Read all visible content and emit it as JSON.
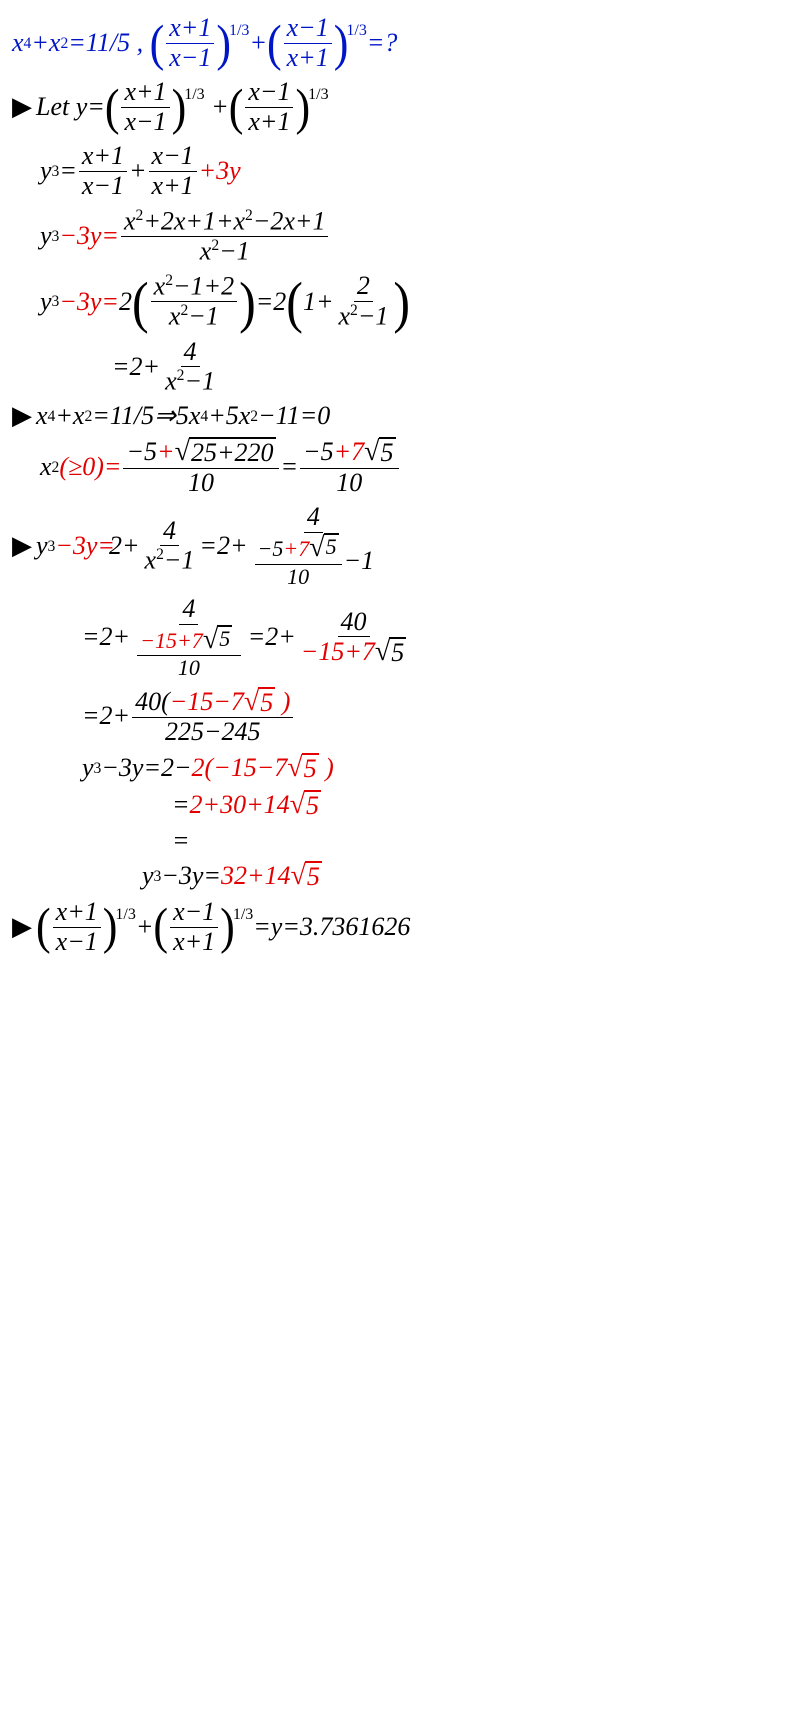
{
  "l1a": "x",
  "l1b": "4",
  "l1c": "+",
  "l1d": "x",
  "l1e": "2",
  "l1f": "=11/5 ,",
  "f_num_xp1": "x+1",
  "f_den_xm1": "x−1",
  "f_num_xm1": "x−1",
  "f_den_xp1": "x+1",
  "exp13": "1/3",
  "eq_q": "=?",
  "tri": "▶",
  "let": "Let y=",
  "plus": "+",
  "y3": "y",
  "cube": "3",
  "eq": "=",
  "p3y": "+3y",
  "m3y": "−3y=",
  "num1": "x",
  "sq": "2",
  "numpoly": "+2x+1+x",
  "mpoly": "−2x+1",
  "dpoly": "x",
  "dm1": "−1",
  "two": "2",
  "nxm12": "x",
  "p2": "−1+2",
  "lpre": "=2",
  "lpar1": "1+",
  "ltwo": "2",
  "eq2p": "=2+",
  "four": "4",
  "l7": " x",
  "rarr": "=11/5⇒5x",
  "p5": "+5x",
  "m11": "−11=0",
  "l8a": "x",
  "l8b": "(≥0)=",
  "l8c": "−5",
  "l8d": "+",
  "l8sqrt": "25+220",
  "l8den": "10",
  "l8e": "−5",
  "l8f": "+7",
  "l8g": "5",
  "l8den2": "10",
  "l9a": "y",
  "l15": "−15",
  "p7s5": "+7",
  "s5": "5",
  "l10": "40",
  "rd": "−15",
  "neww": "+7",
  "l11": "40(",
  "l11b": "−15−7",
  "l11c": " )",
  "l11den": "225−245",
  "l12": "y",
  "m3ys": "−3y ",
  "e2m": "=2−",
  "twop": "2(",
  "c15": "−15−7",
  "endp": " )",
  "l13": "=",
  "l13b": "2+30+14",
  "l14": "=",
  "l15a": "y",
  "l15b": "−3y=",
  "l15c": "32+14",
  "l16": "=y=3.7361626"
}
